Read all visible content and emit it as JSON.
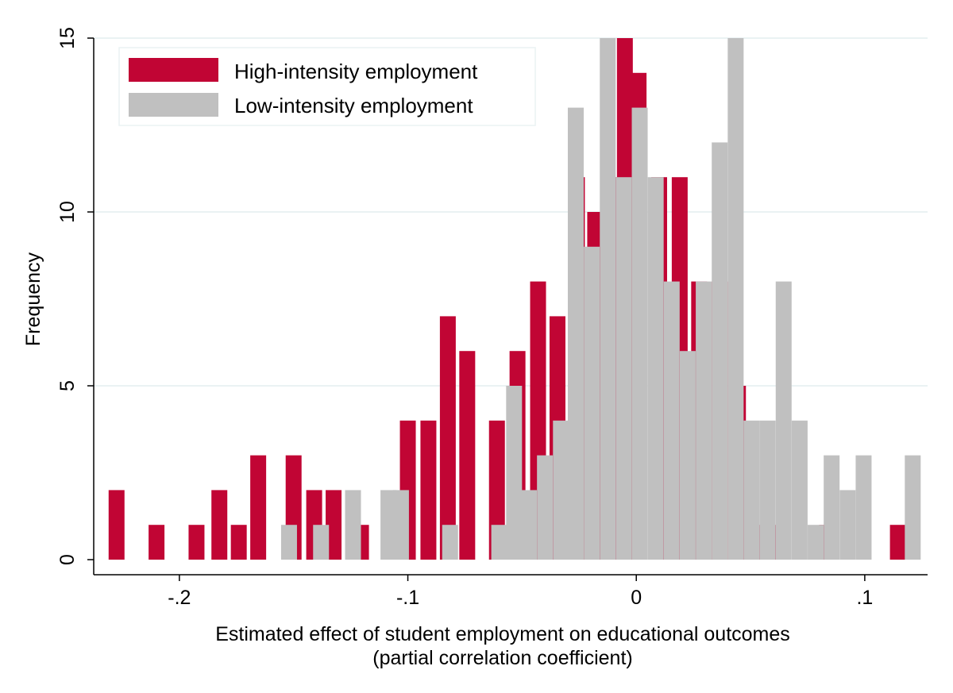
{
  "chart_data": {
    "type": "bar",
    "subtype": "overlaid-histogram",
    "xlabel": "Estimated effect of student employment on educational outcomes",
    "xlabel_line2": "(partial correlation coefficient)",
    "ylabel": "Frequency",
    "xlim": [
      -0.2375,
      0.1275
    ],
    "ylim": [
      0,
      15
    ],
    "xticks": [
      {
        "value": -0.2,
        "label": "-.2"
      },
      {
        "value": -0.1,
        "label": "-.1"
      },
      {
        "value": 0,
        "label": "0"
      },
      {
        "value": 0.1,
        "label": ".1"
      }
    ],
    "yticks": [
      {
        "value": 0,
        "label": "0"
      },
      {
        "value": 5,
        "label": "5"
      },
      {
        "value": 10,
        "label": "10"
      },
      {
        "value": 15,
        "label": "15"
      }
    ],
    "grid": "horizontal",
    "legend_position": "top-left",
    "series": [
      {
        "name": "High-intensity employment",
        "color": "#c10534",
        "x": [
          -0.2275,
          -0.21,
          -0.1925,
          -0.1825,
          -0.174,
          -0.1655,
          -0.15,
          -0.141,
          -0.1325,
          -0.1205,
          -0.1,
          -0.091,
          -0.0825,
          -0.074,
          -0.061,
          -0.052,
          -0.043,
          -0.0345,
          -0.026,
          -0.018,
          -0.0095,
          -0.005,
          0.001,
          0.01,
          0.019,
          0.0275,
          0.0365,
          0.0445,
          0.0535,
          0.0605,
          0.0835,
          0.1145
        ],
        "values": [
          2,
          1,
          1,
          2,
          1,
          3,
          3,
          2,
          2,
          1,
          4,
          4,
          7,
          6,
          4,
          6,
          8,
          7,
          11,
          10,
          11,
          15,
          14,
          11,
          11,
          8,
          8,
          5,
          1,
          1,
          1,
          1
        ]
      },
      {
        "name": "Low-intensity employment",
        "color": "#c0c0c0",
        "x": [
          -0.152,
          -0.138,
          -0.124,
          -0.1085,
          -0.103,
          -0.0815,
          -0.06,
          -0.0535,
          -0.047,
          -0.04,
          -0.033,
          -0.0265,
          -0.0195,
          -0.0125,
          -0.0055,
          0.0015,
          0.0085,
          0.0155,
          0.0225,
          0.0295,
          0.0365,
          0.0435,
          0.0505,
          0.0575,
          0.0645,
          0.0715,
          0.0785,
          0.0855,
          0.0925,
          0.0995,
          0.121
        ],
        "values": [
          1,
          1,
          2,
          2,
          2,
          1,
          1,
          5,
          2,
          3,
          4,
          13,
          9,
          15,
          11,
          13,
          11,
          8,
          6,
          8,
          12,
          15,
          4,
          4,
          8,
          4,
          1,
          3,
          2,
          3,
          3
        ]
      }
    ]
  }
}
